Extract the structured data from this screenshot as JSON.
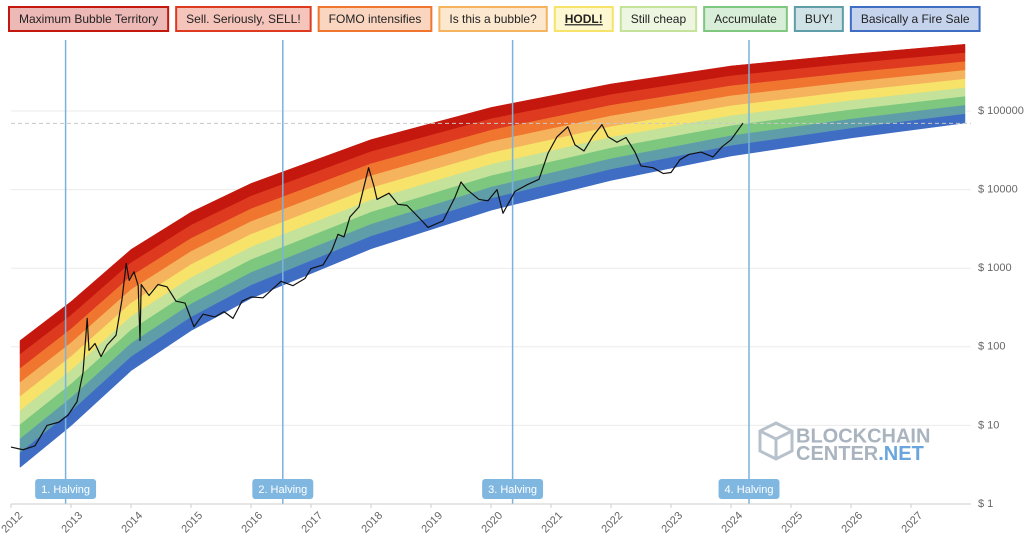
{
  "chart_data": {
    "type": "rainbow",
    "yscale": "log",
    "grid": true,
    "legend": "top",
    "legend_emphasis": 4,
    "xlim": [
      2012,
      2028
    ],
    "xticks": [
      2012,
      2013,
      2014,
      2015,
      2016,
      2017,
      2018,
      2019,
      2020,
      2021,
      2022,
      2023,
      2024,
      2025,
      2026,
      2027
    ],
    "ylim": [
      1,
      800000
    ],
    "yticks": [
      {
        "value": 1,
        "label": "$ 1"
      },
      {
        "value": 10,
        "label": "$ 10"
      },
      {
        "value": 100,
        "label": "$ 100"
      },
      {
        "value": 1000,
        "label": "$ 1000"
      },
      {
        "value": 10000,
        "label": "$ 10000"
      },
      {
        "value": 100000,
        "label": "$ 100000"
      }
    ],
    "band_x": [
      2012.15,
      2013,
      2014,
      2015,
      2016,
      2018,
      2020,
      2022,
      2024,
      2026,
      2027.9
    ],
    "series": [
      {
        "name": "Maximum Bubble Territory",
        "color": "#c4170e",
        "values": [
          120,
          376,
          1730,
          5160,
          11970,
          43250,
          110900,
          220800,
          374100,
          527200,
          706300
        ]
      },
      {
        "name": "Sell. Seriously, SELL!",
        "color": "#dd3a1f",
        "values": [
          79.8,
          251,
          1170,
          3520,
          8240,
          30340,
          79430,
          161400,
          279200,
          401800,
          547000
        ]
      },
      {
        "name": "FOMO intensifies",
        "color": "#f0762f",
        "values": [
          52.8,
          168,
          789,
          2390,
          5680,
          21280,
          56890,
          118000,
          208400,
          306200,
          423600
        ]
      },
      {
        "name": "Is this a bubble?",
        "color": "#f6b35e",
        "values": [
          35,
          112,
          532,
          1630,
          3910,
          14930,
          40740,
          86300,
          155600,
          233300,
          328100
        ]
      },
      {
        "name": "HODL!",
        "color": "#f7e36a",
        "values": [
          23.2,
          75,
          359,
          1110,
          2690,
          10470,
          29170,
          63100,
          116100,
          177800,
          254100
        ]
      },
      {
        "name": "Still cheap",
        "color": "#c5e29a",
        "values": [
          15.3,
          50.1,
          242,
          755,
          1850,
          7350,
          20890,
          46130,
          86700,
          135500,
          196800
        ]
      },
      {
        "name": "Accumulate",
        "color": "#7dc87e",
        "values": [
          10.2,
          33.5,
          163,
          514,
          1280,
          5150,
          14960,
          33730,
          64710,
          103300,
          152400
        ]
      },
      {
        "name": "BUY!",
        "color": "#5f9ea8",
        "values": [
          6.73,
          22.4,
          110,
          350,
          879,
          3610,
          10720,
          24660,
          48310,
          78700,
          118000
        ]
      },
      {
        "name": "Basically a Fire Sale",
        "color": "#3f6dc4",
        "values": [
          4.46,
          15,
          74.3,
          238,
          605,
          2540,
          7670,
          18030,
          36060,
          59980,
          91410
        ]
      }
    ],
    "band_floor": [
      2.95,
      10,
      50.1,
      162,
      417,
      1780,
      5500,
      13180,
      26920,
      45710,
      70790
    ],
    "price": {
      "color": "#111111",
      "x": [
        2012.0,
        2012.2,
        2012.4,
        2012.6,
        2012.8,
        2012.95,
        2013.1,
        2013.2,
        2013.27,
        2013.3,
        2013.4,
        2013.5,
        2013.6,
        2013.75,
        2013.85,
        2013.92,
        2013.97,
        2014.05,
        2014.12,
        2014.15,
        2014.17,
        2014.3,
        2014.45,
        2014.6,
        2014.75,
        2014.9,
        2015.05,
        2015.2,
        2015.4,
        2015.55,
        2015.7,
        2015.85,
        2016.0,
        2016.2,
        2016.4,
        2016.5,
        2016.7,
        2016.9,
        2017.0,
        2017.2,
        2017.35,
        2017.45,
        2017.55,
        2017.65,
        2017.8,
        2017.96,
        2018.05,
        2018.1,
        2018.3,
        2018.45,
        2018.6,
        2018.85,
        2018.95,
        2019.2,
        2019.4,
        2019.5,
        2019.6,
        2019.8,
        2019.95,
        2020.1,
        2020.2,
        2020.4,
        2020.6,
        2020.8,
        2020.95,
        2021.1,
        2021.28,
        2021.4,
        2021.55,
        2021.7,
        2021.85,
        2021.95,
        2022.1,
        2022.25,
        2022.4,
        2022.5,
        2022.7,
        2022.87,
        2023.0,
        2023.15,
        2023.3,
        2023.5,
        2023.7,
        2023.85,
        2024.0,
        2024.15,
        2024.2
      ],
      "values": [
        5.3,
        4.9,
        5.5,
        10,
        11,
        13.5,
        20,
        47,
        230,
        90,
        110,
        75,
        105,
        140,
        400,
        1150,
        700,
        900,
        600,
        120,
        620,
        450,
        620,
        580,
        380,
        360,
        180,
        260,
        240,
        280,
        230,
        380,
        430,
        420,
        580,
        680,
        600,
        740,
        990,
        1100,
        1700,
        2700,
        2500,
        4500,
        6000,
        19000,
        11000,
        7500,
        9000,
        6500,
        6300,
        4000,
        3300,
        4000,
        8000,
        12500,
        10000,
        7500,
        7200,
        10000,
        5000,
        9500,
        11500,
        13500,
        29000,
        47000,
        63000,
        37000,
        31000,
        48000,
        67000,
        47000,
        40000,
        46000,
        30000,
        20000,
        19000,
        16000,
        16500,
        24000,
        28000,
        30000,
        26000,
        35000,
        43000,
        62000,
        70000
      ]
    },
    "reference_line": 69500,
    "annotations": [
      {
        "x": 2012.91,
        "label": "1. Halving"
      },
      {
        "x": 2016.53,
        "label": "2. Halving"
      },
      {
        "x": 2020.36,
        "label": "3. Halving"
      },
      {
        "x": 2024.3,
        "label": "4. Halving"
      }
    ],
    "watermark": {
      "line1": "BLOCKCHAIN",
      "line2": "CENTER",
      "line2_suffix": ".NET"
    }
  }
}
